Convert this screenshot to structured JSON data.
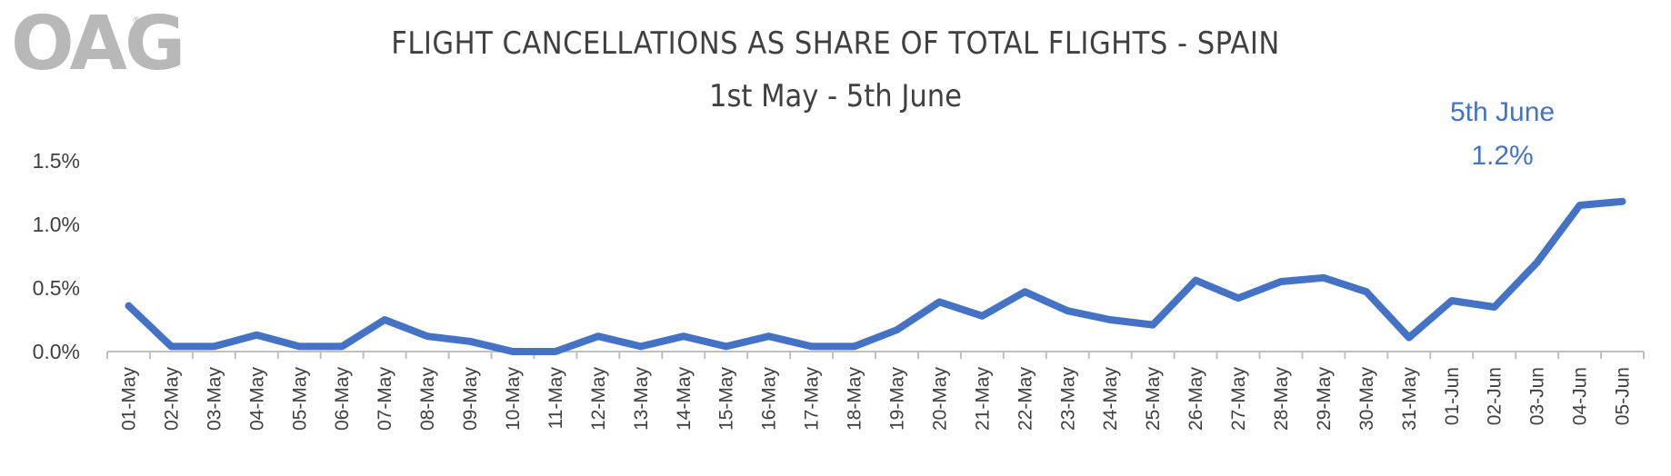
{
  "logo": {
    "text": "OAG",
    "mark": "®"
  },
  "chart_data": {
    "type": "line",
    "title": "FLIGHT CANCELLATIONS AS SHARE OF TOTAL FLIGHTS - SPAIN",
    "subtitle": "1st May - 5th June",
    "xlabel": "",
    "ylabel": "",
    "categories": [
      "01-May",
      "02-May",
      "03-May",
      "04-May",
      "05-May",
      "06-May",
      "07-May",
      "08-May",
      "09-May",
      "10-May",
      "11-May",
      "12-May",
      "13-May",
      "14-May",
      "15-May",
      "16-May",
      "17-May",
      "18-May",
      "19-May",
      "20-May",
      "21-May",
      "22-May",
      "23-May",
      "24-May",
      "25-May",
      "26-May",
      "27-May",
      "28-May",
      "29-May",
      "30-May",
      "31-May",
      "01-Jun",
      "02-Jun",
      "03-Jun",
      "04-Jun",
      "05-Jun"
    ],
    "series": [
      {
        "values": [
          0.36,
          0.04,
          0.04,
          0.13,
          0.04,
          0.04,
          0.25,
          0.12,
          0.08,
          0.0,
          0.0,
          0.12,
          0.04,
          0.12,
          0.04,
          0.12,
          0.04,
          0.04,
          0.17,
          0.39,
          0.28,
          0.47,
          0.32,
          0.25,
          0.21,
          0.56,
          0.42,
          0.55,
          0.58,
          0.47,
          0.11,
          0.4,
          0.35,
          0.7,
          1.15,
          1.18
        ]
      }
    ],
    "ylim": [
      0,
      1.5
    ],
    "yticks": [
      0.0,
      0.5,
      1.0,
      1.5
    ],
    "ytick_labels": [
      "0.0%",
      "0.5%",
      "1.0%",
      "1.5%"
    ],
    "grid": false,
    "legend": "none",
    "annotation": {
      "line1": "5th June",
      "line2": "1.2%"
    },
    "colors": {
      "line": "#4472c4",
      "axis": "#bfbfbf",
      "text": "#404040",
      "annotation": "#4472c4"
    }
  }
}
